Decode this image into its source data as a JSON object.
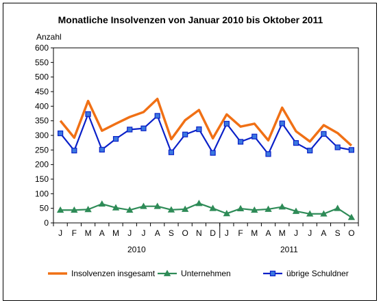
{
  "chart_data": {
    "type": "line",
    "title": "Monatliche Insolvenzen von Januar 2010 bis Oktober 2011",
    "ylabel": "Anzahl",
    "ylim": [
      0,
      600
    ],
    "yticks": [
      0,
      50,
      100,
      150,
      200,
      250,
      300,
      350,
      400,
      450,
      500,
      550,
      600
    ],
    "categories": [
      "J",
      "F",
      "M",
      "A",
      "M",
      "J",
      "J",
      "A",
      "S",
      "O",
      "N",
      "D",
      "J",
      "F",
      "M",
      "A",
      "M",
      "J",
      "J",
      "A",
      "S",
      "O"
    ],
    "years": [
      {
        "label": "2010",
        "from": 0,
        "to": 11
      },
      {
        "label": "2011",
        "from": 12,
        "to": 21
      }
    ],
    "grid": false,
    "legend_position": "bottom",
    "series": [
      {
        "name": "Insolvenzen insgesamt",
        "color": "#f07015",
        "marker": "none",
        "values": [
          350,
          292,
          418,
          316,
          340,
          363,
          380,
          425,
          287,
          352,
          387,
          290,
          372,
          330,
          340,
          283,
          395,
          314,
          279,
          335,
          308,
          265
        ]
      },
      {
        "name": "Unternehmen",
        "color": "#2e8b57",
        "marker": "triangle",
        "values": [
          44,
          44,
          46,
          65,
          52,
          44,
          57,
          57,
          45,
          47,
          67,
          50,
          32,
          49,
          44,
          47,
          55,
          40,
          31,
          31,
          50,
          19
        ]
      },
      {
        "name": "übrige Schuldner",
        "color": "#0a20c8",
        "marker": "square",
        "values": [
          307,
          248,
          373,
          251,
          288,
          320,
          324,
          367,
          242,
          303,
          321,
          240,
          340,
          278,
          296,
          236,
          341,
          274,
          248,
          305,
          259,
          250
        ]
      }
    ]
  }
}
